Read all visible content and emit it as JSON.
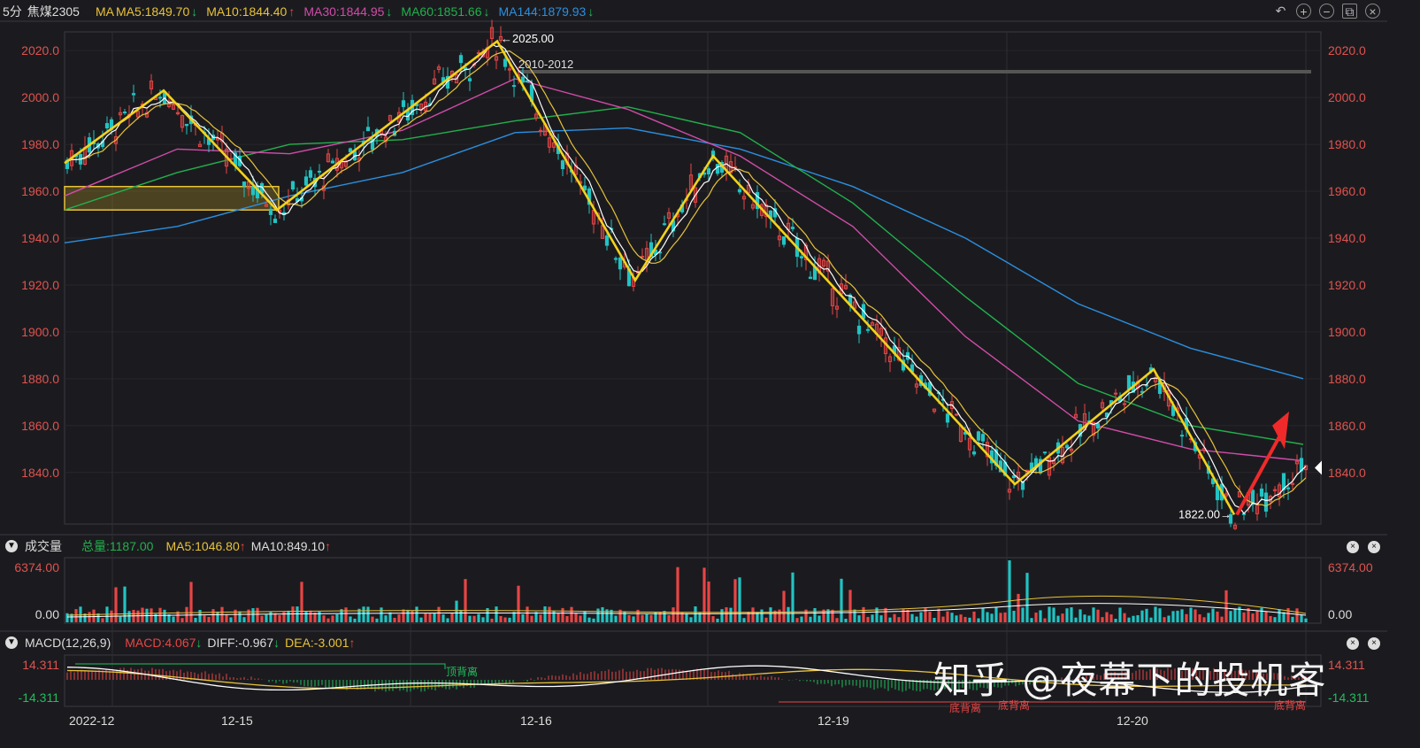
{
  "header": {
    "period": "5分",
    "symbol": "焦煤2305",
    "ma_label": "MA",
    "items": [
      {
        "text": "MA5:1849.70",
        "arrow": "↓",
        "color": "#e8c23a",
        "arrow_color": "#1fbf5b"
      },
      {
        "text": "MA10:1844.40",
        "arrow": "↑",
        "color": "#e8c23a",
        "arrow_color": "#e84545"
      },
      {
        "text": "MA30:1844.95",
        "arrow": "↓",
        "color": "#d04ca8",
        "arrow_color": "#1fbf5b"
      },
      {
        "text": "MA60:1851.66",
        "arrow": "↓",
        "color": "#22b04c",
        "arrow_color": "#1fbf5b"
      },
      {
        "text": "MA144:1879.93",
        "arrow": "↓",
        "color": "#2b8fe0",
        "arrow_color": "#1fbf5b"
      }
    ]
  },
  "volume_header": {
    "title": "成交量",
    "total": "总量:1187.00",
    "ma5": "MA5:1046.80",
    "ma10": "MA10:849.10"
  },
  "macd_header": {
    "title": "MACD(12,26,9)",
    "macd": "MACD:4.067",
    "diff": "DIFF:-0.967",
    "dea": "DEA:-3.001"
  },
  "watermark": "知乎 @夜幕下的投机客",
  "chart_data": {
    "type": "candlestick",
    "y_ticks": [
      "2020.0",
      "2000.0",
      "1980.0",
      "1960.0",
      "1940.0",
      "1920.0",
      "1900.0",
      "1880.0",
      "1860.0",
      "1840.0"
    ],
    "ylim": [
      1818,
      2028
    ],
    "x_ticks": [
      "2022-12",
      "12-15",
      "12-16",
      "12-19",
      "12-20"
    ],
    "annotations": {
      "high": "2025.00",
      "low": "1822.00",
      "level": "2010-2012",
      "level_value": 2011
    },
    "zigzag_points": [
      1972,
      2003,
      1952,
      2024,
      1922,
      1975,
      1835,
      1884,
      1822
    ],
    "ma_lines": {
      "ma144": [
        1938,
        1945,
        1958,
        1968,
        1985,
        1987,
        1978,
        1962,
        1940,
        1912,
        1893,
        1880
      ],
      "ma60": [
        1952,
        1968,
        1980,
        1982,
        1990,
        1996,
        1985,
        1955,
        1915,
        1878,
        1860,
        1852
      ],
      "ma30": [
        1958,
        1978,
        1976,
        1986,
        2008,
        1995,
        1975,
        1945,
        1898,
        1862,
        1850,
        1845
      ]
    },
    "volume": {
      "max_label": "6374.00",
      "zero_label": "0.00"
    },
    "macd": {
      "top_label": "14.311",
      "bottom_label": "-14.311"
    },
    "divergence_labels": [
      "顶背离",
      "底背离",
      "底背离",
      "底背离"
    ]
  }
}
